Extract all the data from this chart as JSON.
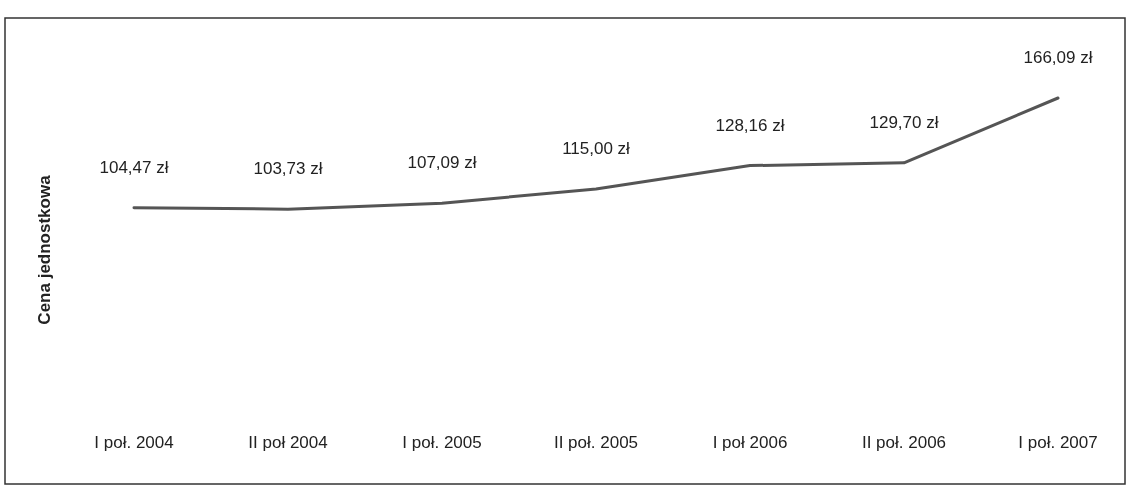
{
  "chart_data": {
    "type": "line",
    "ylabel": "Cena jednostkowa",
    "categories": [
      "I poł. 2004",
      "II poł 2004",
      "I poł. 2005",
      "II poł. 2005",
      "I poł 2006",
      "II poł. 2006",
      "I poł. 2007"
    ],
    "series": [
      {
        "color": "#555555",
        "values": [
          104.47,
          103.73,
          107.09,
          115.0,
          128.16,
          129.7,
          166.09
        ],
        "value_labels": [
          "104,47 zł",
          "103,73 zł",
          "107,09 zł",
          "115,00 zł",
          "128,16 zł",
          "129,70 zł",
          "166,09 zł"
        ]
      }
    ],
    "grid": false,
    "marker": "none",
    "line_style": "solid"
  }
}
